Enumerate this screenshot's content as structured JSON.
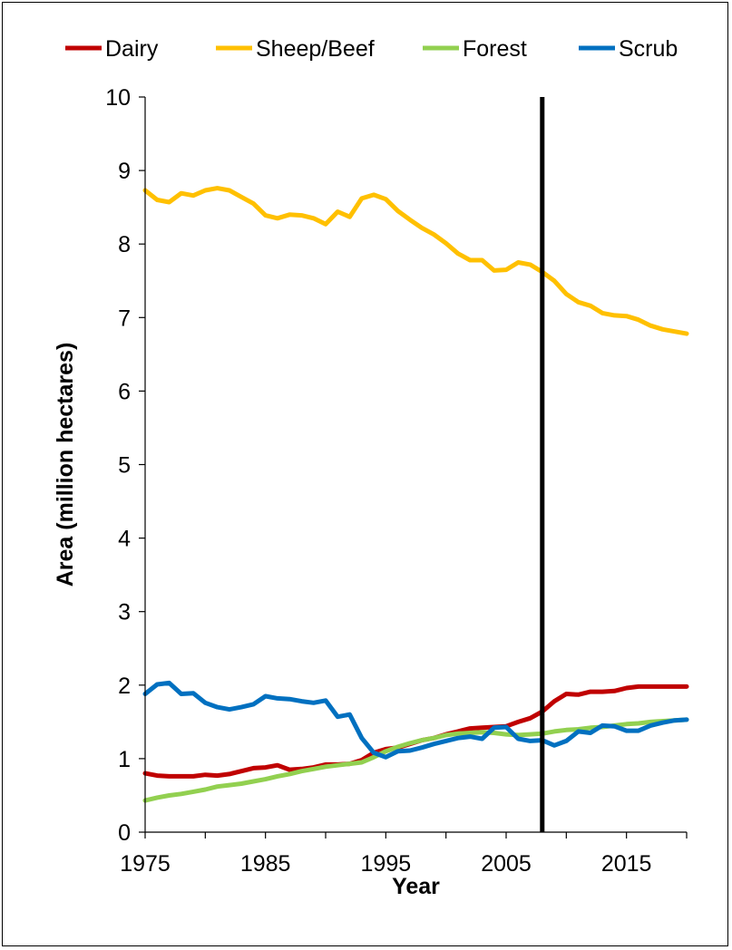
{
  "chart_data": {
    "type": "line",
    "xlabel": "Year",
    "ylabel": "Area (million hectares)",
    "xlim": [
      1975,
      2020
    ],
    "ylim": [
      0,
      10
    ],
    "x_ticks": [
      1975,
      1985,
      1995,
      2005,
      2015
    ],
    "y_ticks": [
      0,
      1,
      2,
      3,
      4,
      5,
      6,
      7,
      8,
      9,
      10
    ],
    "grid": false,
    "legend_position": "top",
    "vertical_marker_x": 2008,
    "x": [
      1975,
      1976,
      1977,
      1978,
      1979,
      1980,
      1981,
      1982,
      1983,
      1984,
      1985,
      1986,
      1987,
      1988,
      1989,
      1990,
      1991,
      1992,
      1993,
      1994,
      1995,
      1996,
      1997,
      1998,
      1999,
      2000,
      2001,
      2002,
      2003,
      2004,
      2005,
      2006,
      2007,
      2008,
      2009,
      2010,
      2011,
      2012,
      2013,
      2014,
      2015,
      2016,
      2017,
      2018,
      2019,
      2020
    ],
    "series": [
      {
        "name": "Dairy",
        "color": "#C00000",
        "values": [
          0.8,
          0.77,
          0.76,
          0.76,
          0.76,
          0.78,
          0.77,
          0.79,
          0.83,
          0.87,
          0.88,
          0.91,
          0.85,
          0.86,
          0.88,
          0.92,
          0.92,
          0.93,
          0.98,
          1.08,
          1.13,
          1.15,
          1.2,
          1.25,
          1.28,
          1.33,
          1.37,
          1.41,
          1.42,
          1.43,
          1.44,
          1.5,
          1.55,
          1.64,
          1.78,
          1.88,
          1.87,
          1.91,
          1.91,
          1.92,
          1.96,
          1.98,
          1.98,
          1.98,
          1.98,
          1.98
        ]
      },
      {
        "name": "Sheep/Beef",
        "color": "#FFC000",
        "values": [
          8.73,
          8.6,
          8.57,
          8.69,
          8.66,
          8.73,
          8.76,
          8.73,
          8.64,
          8.55,
          8.39,
          8.35,
          8.4,
          8.39,
          8.35,
          8.27,
          8.44,
          8.37,
          8.62,
          8.67,
          8.61,
          8.45,
          8.33,
          8.22,
          8.13,
          8.01,
          7.87,
          7.78,
          7.78,
          7.64,
          7.65,
          7.75,
          7.72,
          7.62,
          7.5,
          7.32,
          7.21,
          7.16,
          7.06,
          7.03,
          7.02,
          6.97,
          6.89,
          6.84,
          6.81,
          6.78
        ]
      },
      {
        "name": "Forest",
        "color": "#92D050",
        "values": [
          0.43,
          0.47,
          0.5,
          0.52,
          0.55,
          0.58,
          0.62,
          0.64,
          0.66,
          0.69,
          0.72,
          0.76,
          0.79,
          0.83,
          0.86,
          0.89,
          0.91,
          0.93,
          0.95,
          1.02,
          1.1,
          1.16,
          1.21,
          1.25,
          1.28,
          1.32,
          1.34,
          1.35,
          1.36,
          1.35,
          1.33,
          1.32,
          1.33,
          1.34,
          1.37,
          1.39,
          1.4,
          1.42,
          1.43,
          1.45,
          1.47,
          1.48,
          1.5,
          1.51,
          1.52,
          1.53
        ]
      },
      {
        "name": "Scrub",
        "color": "#0070C0",
        "values": [
          1.88,
          2.01,
          2.03,
          1.88,
          1.89,
          1.76,
          1.7,
          1.67,
          1.7,
          1.74,
          1.85,
          1.82,
          1.81,
          1.78,
          1.76,
          1.79,
          1.57,
          1.6,
          1.28,
          1.08,
          1.02,
          1.1,
          1.11,
          1.15,
          1.2,
          1.24,
          1.28,
          1.3,
          1.27,
          1.42,
          1.43,
          1.27,
          1.24,
          1.25,
          1.18,
          1.24,
          1.37,
          1.35,
          1.45,
          1.44,
          1.38,
          1.38,
          1.45,
          1.49,
          1.52,
          1.53
        ]
      }
    ]
  }
}
